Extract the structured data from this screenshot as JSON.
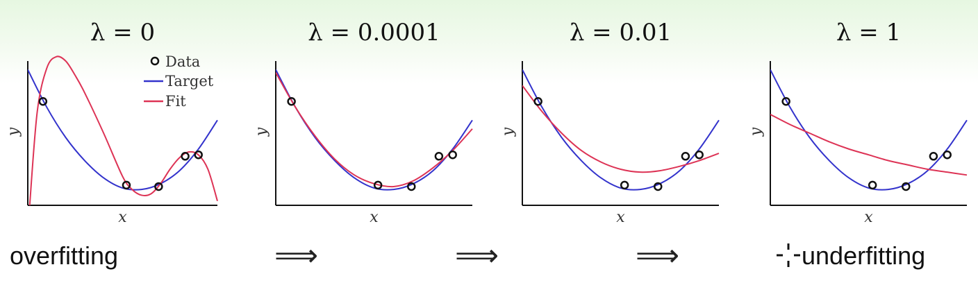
{
  "colors": {
    "target": "#3333cc",
    "fit": "#dd3355",
    "data": "#111111",
    "axis": "#111111"
  },
  "legend": {
    "data_label": "Data",
    "target_label": "Target",
    "fit_label": "Fit"
  },
  "captions": {
    "left": "overfitting",
    "right": "underfitting",
    "arrow": "⟹",
    "cursor_icon": "crosshair-cursor-icon"
  },
  "chart_data": [
    {
      "type": "line",
      "title": "λ = 0",
      "xlabel": "x",
      "ylabel": "y",
      "xlim": [
        0,
        1
      ],
      "ylim": [
        0,
        1
      ],
      "grid": false,
      "legend_position": "top-right",
      "data_points": {
        "x": [
          0.08,
          0.52,
          0.69,
          0.83,
          0.9
        ],
        "y": [
          0.72,
          0.14,
          0.13,
          0.34,
          0.35
        ]
      },
      "series": [
        {
          "name": "Target",
          "x": [
            0,
            0.1,
            0.2,
            0.3,
            0.4,
            0.5,
            0.6,
            0.7,
            0.8,
            0.9,
            1.0
          ],
          "y": [
            0.94,
            0.68,
            0.47,
            0.31,
            0.19,
            0.12,
            0.11,
            0.15,
            0.24,
            0.39,
            0.59
          ]
        },
        {
          "name": "Fit",
          "x": [
            0.01,
            0.05,
            0.1,
            0.15,
            0.2,
            0.25,
            0.3,
            0.4,
            0.5,
            0.55,
            0.6,
            0.65,
            0.7,
            0.75,
            0.8,
            0.85,
            0.9,
            0.95,
            1.0
          ],
          "y": [
            0.0,
            0.65,
            0.95,
            1.03,
            1.0,
            0.9,
            0.78,
            0.5,
            0.2,
            0.11,
            0.07,
            0.08,
            0.15,
            0.25,
            0.33,
            0.37,
            0.35,
            0.25,
            0.03
          ]
        }
      ]
    },
    {
      "type": "line",
      "title": "λ = 0.0001",
      "xlabel": "x",
      "ylabel": "y",
      "xlim": [
        0,
        1
      ],
      "ylim": [
        0,
        1
      ],
      "grid": false,
      "data_points": {
        "x": [
          0.08,
          0.52,
          0.69,
          0.83,
          0.9
        ],
        "y": [
          0.72,
          0.14,
          0.13,
          0.34,
          0.35
        ]
      },
      "series": [
        {
          "name": "Target",
          "x": [
            0,
            0.1,
            0.2,
            0.3,
            0.4,
            0.5,
            0.6,
            0.7,
            0.8,
            0.9,
            1.0
          ],
          "y": [
            0.94,
            0.68,
            0.47,
            0.31,
            0.19,
            0.12,
            0.11,
            0.15,
            0.24,
            0.39,
            0.59
          ]
        },
        {
          "name": "Fit",
          "x": [
            0,
            0.1,
            0.2,
            0.3,
            0.4,
            0.5,
            0.6,
            0.7,
            0.8,
            0.9,
            1.0
          ],
          "y": [
            0.92,
            0.68,
            0.48,
            0.32,
            0.21,
            0.15,
            0.13,
            0.17,
            0.26,
            0.38,
            0.53
          ]
        }
      ]
    },
    {
      "type": "line",
      "title": "λ = 0.01",
      "xlabel": "x",
      "ylabel": "y",
      "xlim": [
        0,
        1
      ],
      "ylim": [
        0,
        1
      ],
      "grid": false,
      "data_points": {
        "x": [
          0.08,
          0.52,
          0.69,
          0.83,
          0.9
        ],
        "y": [
          0.72,
          0.14,
          0.13,
          0.34,
          0.35
        ]
      },
      "series": [
        {
          "name": "Target",
          "x": [
            0,
            0.1,
            0.2,
            0.3,
            0.4,
            0.5,
            0.6,
            0.7,
            0.8,
            0.9,
            1.0
          ],
          "y": [
            0.94,
            0.68,
            0.47,
            0.31,
            0.19,
            0.12,
            0.11,
            0.15,
            0.24,
            0.39,
            0.59
          ]
        },
        {
          "name": "Fit",
          "x": [
            0,
            0.1,
            0.2,
            0.3,
            0.4,
            0.5,
            0.6,
            0.7,
            0.8,
            0.9,
            1.0
          ],
          "y": [
            0.83,
            0.65,
            0.5,
            0.38,
            0.3,
            0.25,
            0.23,
            0.24,
            0.27,
            0.31,
            0.36
          ]
        }
      ]
    },
    {
      "type": "line",
      "title": "λ = 1",
      "xlabel": "x",
      "ylabel": "y",
      "xlim": [
        0,
        1
      ],
      "ylim": [
        0,
        1
      ],
      "grid": false,
      "data_points": {
        "x": [
          0.08,
          0.52,
          0.69,
          0.83,
          0.9
        ],
        "y": [
          0.72,
          0.14,
          0.13,
          0.34,
          0.35
        ]
      },
      "series": [
        {
          "name": "Target",
          "x": [
            0,
            0.1,
            0.2,
            0.3,
            0.4,
            0.5,
            0.6,
            0.7,
            0.8,
            0.9,
            1.0
          ],
          "y": [
            0.94,
            0.68,
            0.47,
            0.31,
            0.19,
            0.12,
            0.11,
            0.15,
            0.24,
            0.39,
            0.59
          ]
        },
        {
          "name": "Fit",
          "x": [
            0,
            0.1,
            0.2,
            0.3,
            0.4,
            0.5,
            0.6,
            0.7,
            0.8,
            0.9,
            1.0
          ],
          "y": [
            0.63,
            0.56,
            0.5,
            0.44,
            0.39,
            0.35,
            0.31,
            0.28,
            0.25,
            0.23,
            0.21
          ]
        }
      ]
    }
  ]
}
